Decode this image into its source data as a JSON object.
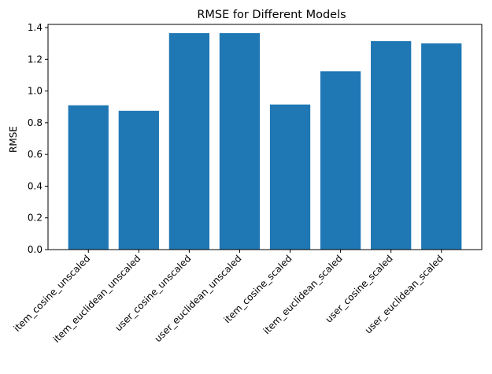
{
  "chart_data": {
    "type": "bar",
    "title": "RMSE for Different Models",
    "xlabel": "",
    "ylabel": "RMSE",
    "categories": [
      "item_cosine_unscaled",
      "item_euclidean_unscaled",
      "user_cosine_unscaled",
      "user_euclidean_unscaled",
      "item_cosine_scaled",
      "item_euclidean_scaled",
      "user_cosine_scaled",
      "user_euclidean_scaled"
    ],
    "values": [
      0.91,
      0.875,
      1.365,
      1.365,
      0.915,
      1.125,
      1.315,
      1.3
    ],
    "ylim": [
      0,
      1.42
    ],
    "yticks": [
      "0.0",
      "0.2",
      "0.4",
      "0.6",
      "0.8",
      "1.0",
      "1.2",
      "1.4"
    ],
    "grid": false,
    "bar_color": "#1f77b4"
  }
}
